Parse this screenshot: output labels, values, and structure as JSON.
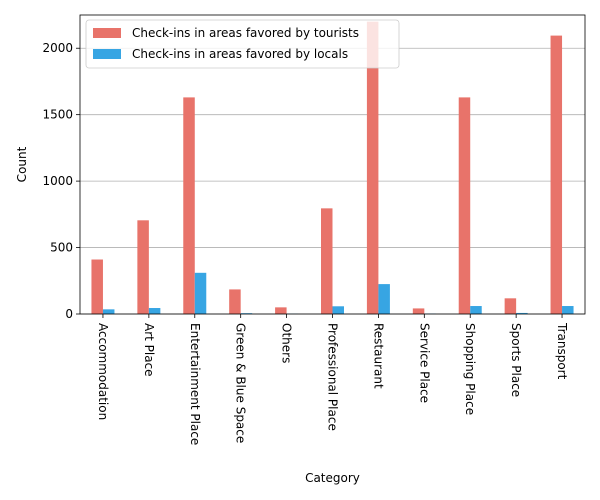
{
  "chart_data": {
    "type": "bar",
    "xlabel": "Category",
    "ylabel": "Count",
    "ylim": [
      0,
      2250
    ],
    "yticks": [
      0,
      500,
      1000,
      1500,
      2000
    ],
    "grid": "y",
    "legend_position": "top-left",
    "categories": [
      "Accommodation",
      "Art Place",
      "Entertainment Place",
      "Green & Blue Space",
      "Others",
      "Professional Place",
      "Restaurant",
      "Service Place",
      "Shopping Place",
      "Sports Place",
      "Transport"
    ],
    "series": [
      {
        "name": "Check-ins in areas favored by tourists",
        "color": "#E8736A",
        "values": [
          410,
          705,
          1630,
          185,
          50,
          795,
          2200,
          42,
          1630,
          118,
          2095
        ]
      },
      {
        "name": "Check-ins in areas favored by locals",
        "color": "#37A5E3",
        "values": [
          35,
          45,
          310,
          6,
          2,
          58,
          225,
          3,
          60,
          8,
          60
        ]
      }
    ]
  }
}
